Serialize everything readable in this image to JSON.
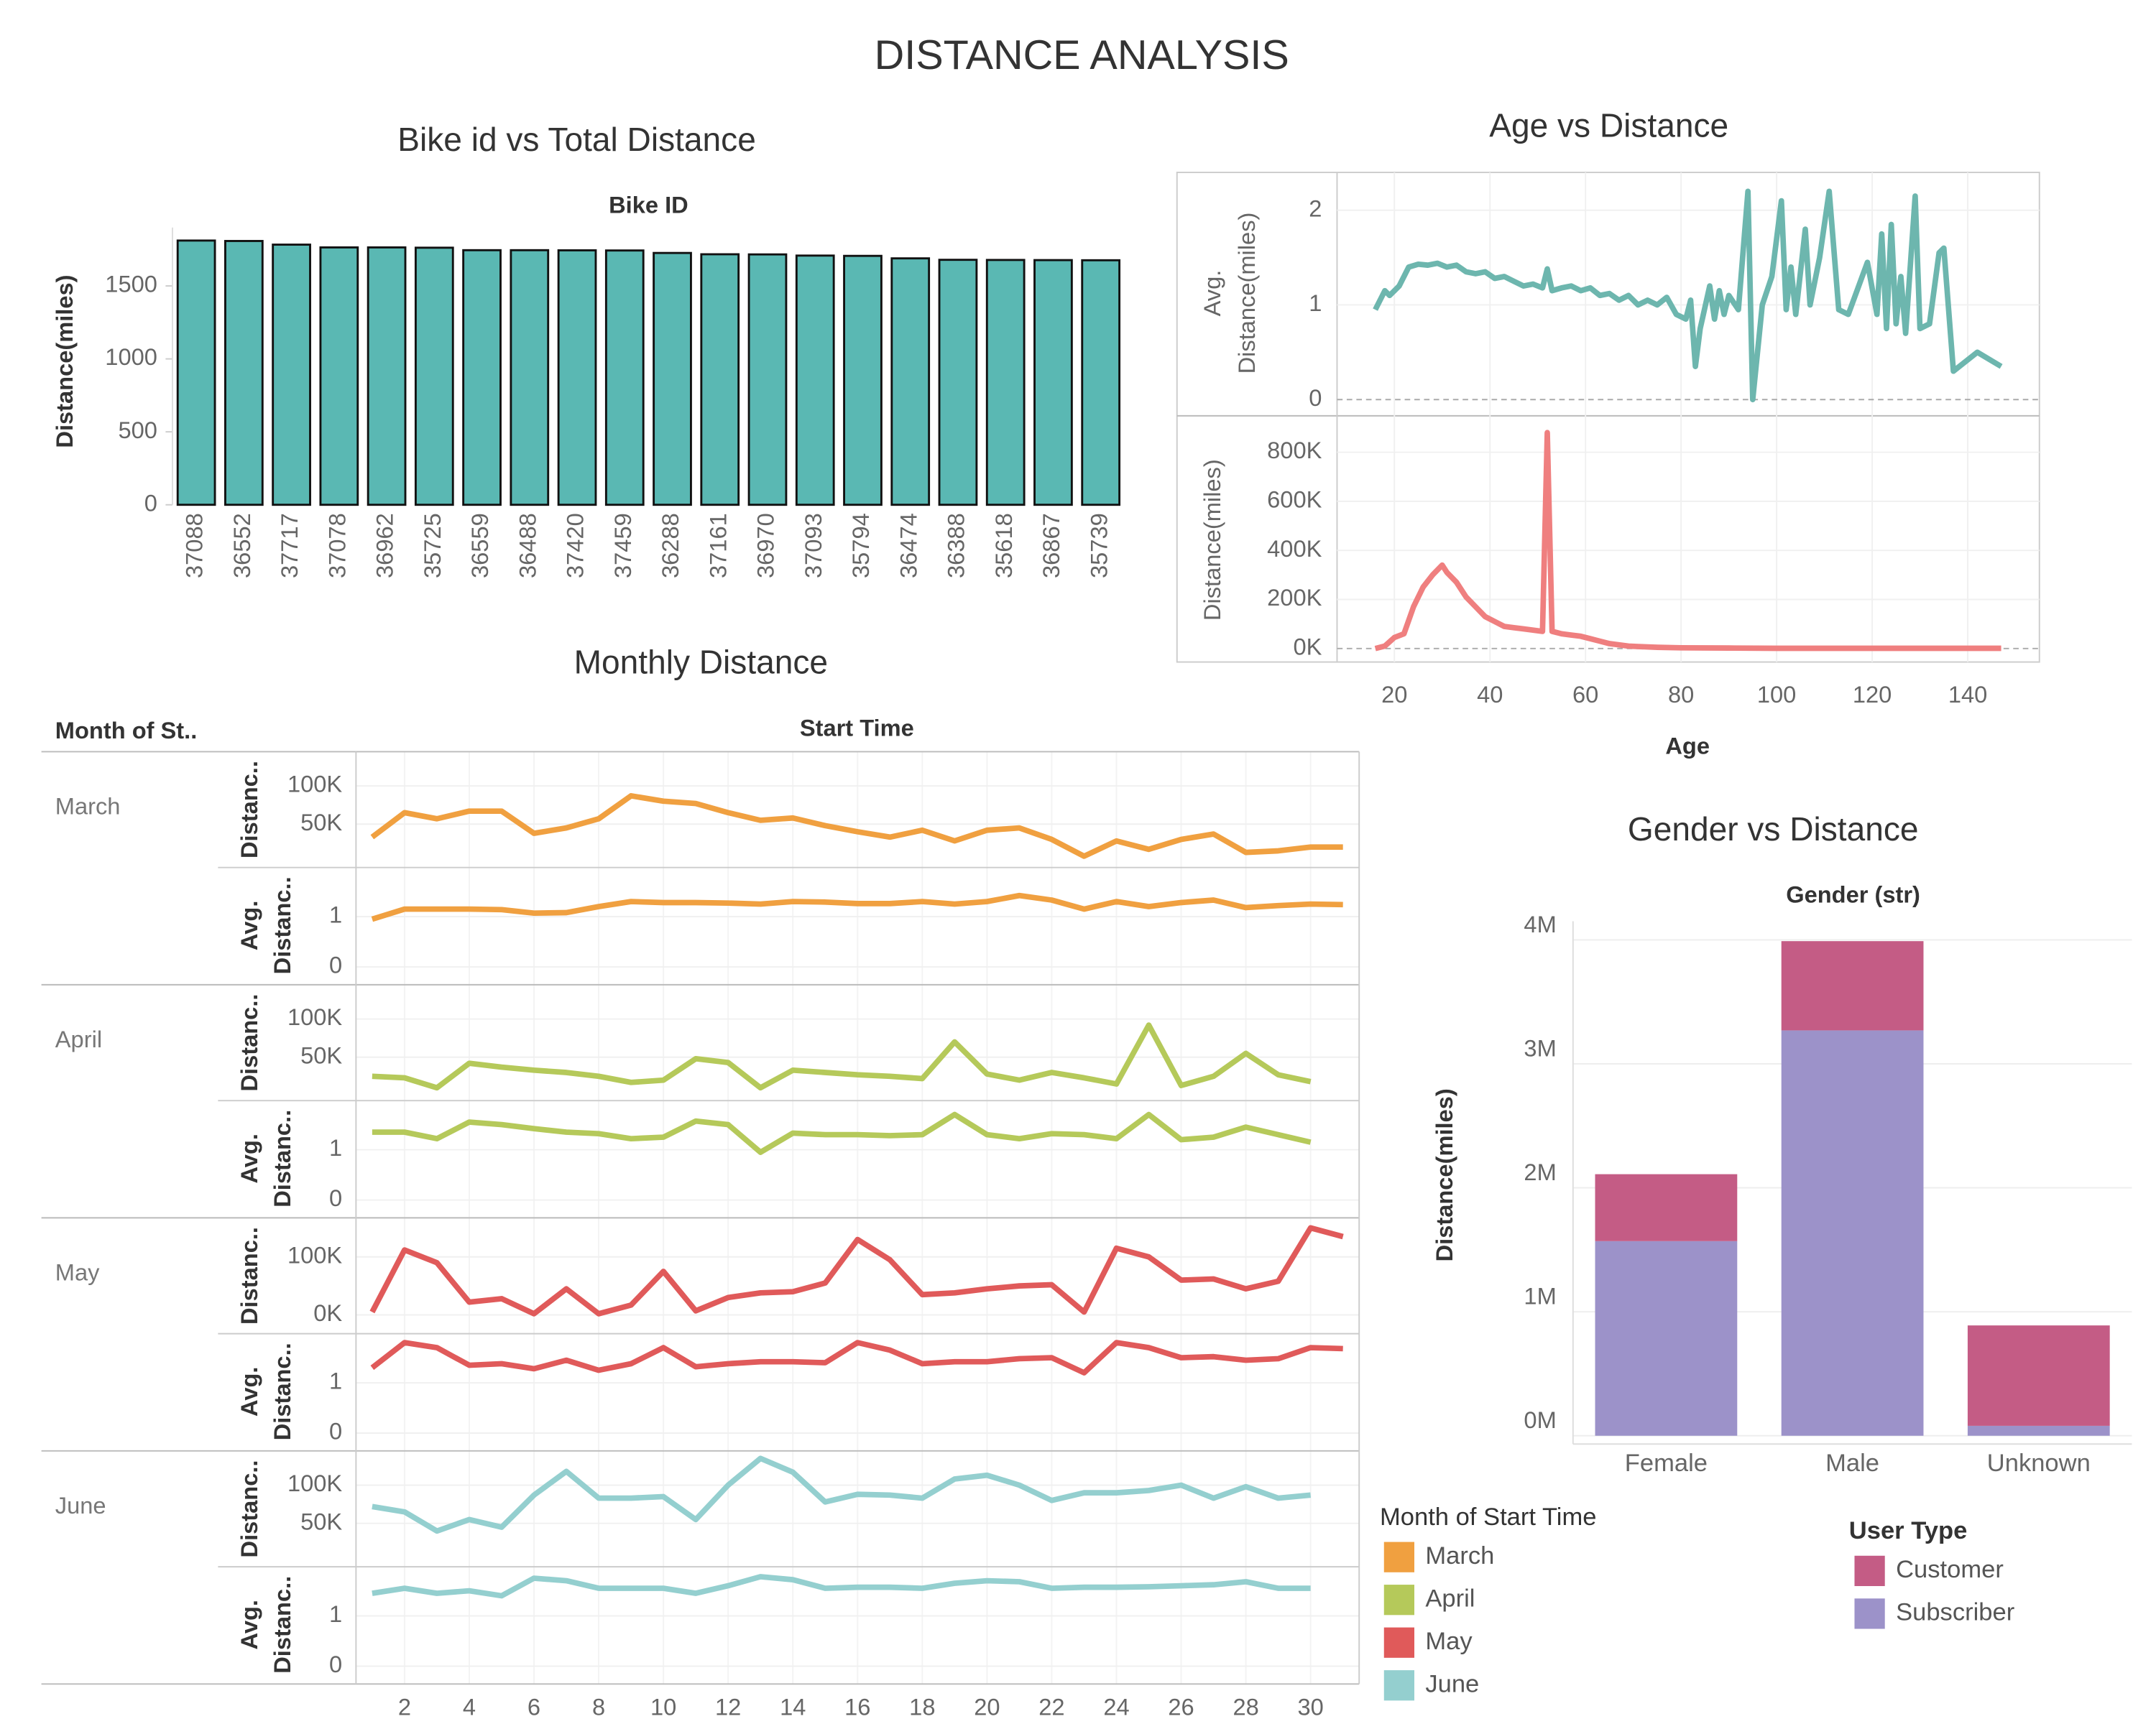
{
  "title": "DISTANCE ANALYSIS",
  "chart_data": [
    {
      "type": "bar",
      "title": "Bike id vs Total Distance",
      "x_label": "Bike ID",
      "y_label": "Distance(miles)",
      "categories": [
        "37088",
        "36552",
        "37717",
        "37078",
        "36962",
        "35725",
        "36559",
        "36488",
        "37420",
        "37459",
        "36288",
        "37161",
        "36970",
        "37093",
        "35794",
        "36474",
        "36388",
        "35618",
        "36867",
        "35739"
      ],
      "values": [
        1811,
        1808,
        1783,
        1764,
        1764,
        1762,
        1745,
        1745,
        1744,
        1743,
        1726,
        1717,
        1716,
        1708,
        1706,
        1689,
        1679,
        1678,
        1677,
        1676
      ],
      "color": "#5ab8b3",
      "ylim": [
        0,
        1900
      ],
      "yticks": [
        0,
        500,
        1000,
        1500
      ]
    },
    {
      "type": "line",
      "title": "Age vs Distance",
      "x_label": "Age",
      "xlim": [
        8,
        155
      ],
      "xticks": [
        20,
        40,
        60,
        80,
        100,
        120,
        140
      ],
      "panes": [
        {
          "y_label": [
            "Avg.",
            "Distance(miles)"
          ],
          "color": "#6db6ae",
          "ylim": [
            -0.15,
            2.4
          ],
          "yticks": [
            0,
            1,
            2
          ],
          "x": [
            16,
            18,
            19,
            21,
            23,
            25,
            27,
            29,
            31,
            33,
            35,
            37,
            39,
            41,
            43,
            45,
            47,
            49,
            51,
            52,
            53,
            55,
            57,
            59,
            61,
            63,
            65,
            67,
            69,
            71,
            73,
            75,
            77,
            79,
            81,
            82,
            83,
            84,
            86,
            87,
            88,
            89,
            90,
            92,
            94,
            95,
            97,
            99,
            101,
            102,
            103,
            104,
            106,
            107,
            109,
            111,
            113,
            115,
            119,
            121,
            122,
            123,
            124,
            125,
            126,
            127,
            129,
            130,
            132,
            134,
            135,
            137,
            142,
            147
          ],
          "values": [
            0.95,
            1.15,
            1.1,
            1.2,
            1.4,
            1.43,
            1.42,
            1.44,
            1.4,
            1.42,
            1.35,
            1.33,
            1.35,
            1.28,
            1.3,
            1.25,
            1.2,
            1.22,
            1.18,
            1.38,
            1.15,
            1.18,
            1.2,
            1.15,
            1.18,
            1.1,
            1.12,
            1.05,
            1.1,
            1.0,
            1.05,
            1.0,
            1.08,
            0.9,
            0.85,
            1.05,
            0.35,
            0.75,
            1.2,
            0.85,
            1.15,
            0.9,
            1.1,
            0.95,
            2.2,
            0,
            1.0,
            1.3,
            2.1,
            0.95,
            1.4,
            0.9,
            1.8,
            1.0,
            1.5,
            2.2,
            0.95,
            0.9,
            1.45,
            0.9,
            1.75,
            0.75,
            1.85,
            0.8,
            1.3,
            0.7,
            2.15,
            0.75,
            0.8,
            1.55,
            1.6,
            0.3,
            0.5,
            0.35
          ]
        },
        {
          "y_label": [
            "Distance(miles)"
          ],
          "color": "#ef7f7f",
          "ylim": [
            -55000,
            940000
          ],
          "yticks": [
            {
              "value": 0,
              "label": "0K"
            },
            {
              "value": 200000,
              "label": "200K"
            },
            {
              "value": 400000,
              "label": "400K"
            },
            {
              "value": 600000,
              "label": "600K"
            },
            {
              "value": 800000,
              "label": "800K"
            }
          ],
          "x": [
            16,
            18,
            20,
            22,
            24,
            26,
            28,
            30,
            31,
            33,
            35,
            37,
            39,
            41,
            43,
            45,
            47,
            49,
            51,
            52,
            53,
            55,
            57,
            59,
            61,
            63,
            65,
            67,
            69,
            71,
            75,
            80,
            90,
            100,
            120,
            147
          ],
          "values": [
            0,
            10000,
            45000,
            60000,
            170000,
            250000,
            300000,
            340000,
            310000,
            270000,
            210000,
            170000,
            130000,
            110000,
            90000,
            85000,
            80000,
            75000,
            70000,
            880000,
            70000,
            60000,
            55000,
            50000,
            40000,
            30000,
            20000,
            15000,
            10000,
            8000,
            5000,
            3000,
            2000,
            1000,
            1000,
            1000
          ]
        }
      ]
    },
    {
      "type": "small_multiples",
      "title": "Monthly Distance",
      "row_header": "Month of St..",
      "x_label": "Start Time",
      "xlim": [
        0.5,
        31.5
      ],
      "xticks": [
        2,
        4,
        6,
        8,
        10,
        12,
        14,
        16,
        18,
        20,
        22,
        24,
        26,
        28,
        30
      ],
      "legend_title": "Month of Start Time",
      "rows": [
        {
          "name": "March",
          "color": "#f0a040",
          "x": [
            1,
            2,
            3,
            4,
            5,
            6,
            7,
            8,
            9,
            10,
            11,
            12,
            13,
            14,
            15,
            16,
            17,
            18,
            19,
            20,
            21,
            22,
            23,
            24,
            25,
            26,
            27,
            28,
            29,
            30,
            31
          ],
          "panes": [
            {
              "y_label": [
                "Distanc.."
              ],
              "ylim": [
                -5000,
                143000
              ],
              "yticks": [
                {
                  "value": 50000,
                  "label": "50K"
                },
                {
                  "value": 100000,
                  "label": "100K"
                }
              ],
              "values": [
                33000,
                65000,
                57000,
                67000,
                67000,
                38000,
                45000,
                57000,
                87000,
                80000,
                77000,
                65000,
                55000,
                58000,
                48000,
                40000,
                33000,
                42000,
                28000,
                42000,
                45000,
                30000,
                8000,
                28000,
                17000,
                30000,
                37000,
                13000,
                15000,
                20000,
                20000
              ]
            },
            {
              "y_label": [
                "Avg.",
                "Distanc.."
              ],
              "ylim": [
                -0.3,
                1.95
              ],
              "yticks": [
                0,
                1
              ],
              "values": [
                0.95,
                1.15,
                1.15,
                1.15,
                1.14,
                1.07,
                1.08,
                1.2,
                1.3,
                1.28,
                1.28,
                1.27,
                1.25,
                1.3,
                1.29,
                1.26,
                1.26,
                1.3,
                1.25,
                1.3,
                1.42,
                1.33,
                1.15,
                1.3,
                1.2,
                1.28,
                1.33,
                1.18,
                1.22,
                1.25,
                1.24
              ]
            }
          ]
        },
        {
          "name": "April",
          "color": "#b5c95a",
          "x": [
            1,
            2,
            3,
            4,
            5,
            6,
            7,
            8,
            9,
            10,
            11,
            12,
            13,
            14,
            15,
            16,
            17,
            18,
            19,
            20,
            21,
            22,
            23,
            24,
            25,
            26,
            27,
            28,
            29,
            30
          ],
          "panes": [
            {
              "y_label": [
                "Distanc.."
              ],
              "ylim": [
                -5000,
                143000
              ],
              "yticks": [
                {
                  "value": 50000,
                  "label": "50K"
                },
                {
                  "value": 100000,
                  "label": "100K"
                }
              ],
              "values": [
                25000,
                23000,
                10000,
                42000,
                37000,
                33000,
                30000,
                25000,
                17000,
                20000,
                48000,
                43000,
                10000,
                33000,
                30000,
                27000,
                25000,
                22000,
                70000,
                28000,
                20000,
                30000,
                23000,
                15000,
                92000,
                13000,
                25000,
                55000,
                27000,
                18000
              ]
            },
            {
              "y_label": [
                "Avg.",
                "Distanc.."
              ],
              "ylim": [
                -0.3,
                1.95
              ],
              "yticks": [
                0,
                1
              ],
              "values": [
                1.35,
                1.35,
                1.22,
                1.55,
                1.5,
                1.42,
                1.35,
                1.32,
                1.22,
                1.25,
                1.57,
                1.5,
                0.95,
                1.33,
                1.3,
                1.3,
                1.28,
                1.3,
                1.7,
                1.3,
                1.22,
                1.32,
                1.3,
                1.22,
                1.7,
                1.2,
                1.25,
                1.45,
                1.3,
                1.15
              ]
            }
          ]
        },
        {
          "name": "May",
          "color": "#e05a5a",
          "x": [
            1,
            2,
            3,
            4,
            5,
            6,
            7,
            8,
            9,
            10,
            11,
            12,
            13,
            14,
            15,
            16,
            17,
            18,
            19,
            20,
            21,
            22,
            23,
            24,
            25,
            26,
            27,
            28,
            29,
            30,
            31
          ],
          "panes": [
            {
              "y_label": [
                "Distanc.."
              ],
              "ylim": [
                -30000,
                165000
              ],
              "yticks": [
                {
                  "value": 0,
                  "label": "0K"
                },
                {
                  "value": 100000,
                  "label": "100K"
                }
              ],
              "values": [
                5000,
                112000,
                90000,
                22000,
                28000,
                2000,
                45000,
                2000,
                17000,
                75000,
                7000,
                30000,
                38000,
                40000,
                55000,
                130000,
                95000,
                35000,
                38000,
                45000,
                50000,
                52000,
                5000,
                115000,
                100000,
                60000,
                62000,
                45000,
                58000,
                150000,
                135000
              ]
            },
            {
              "y_label": [
                "Avg.",
                "Distanc.."
              ],
              "ylim": [
                -0.3,
                1.95
              ],
              "yticks": [
                0,
                1
              ],
              "values": [
                1.3,
                1.8,
                1.7,
                1.35,
                1.38,
                1.28,
                1.45,
                1.25,
                1.38,
                1.7,
                1.32,
                1.38,
                1.42,
                1.42,
                1.4,
                1.8,
                1.65,
                1.38,
                1.42,
                1.42,
                1.48,
                1.5,
                1.2,
                1.8,
                1.7,
                1.5,
                1.52,
                1.45,
                1.48,
                1.7,
                1.68
              ]
            }
          ]
        },
        {
          "name": "June",
          "color": "#94cfcf",
          "x": [
            1,
            2,
            3,
            4,
            5,
            6,
            7,
            8,
            9,
            10,
            11,
            12,
            13,
            14,
            15,
            16,
            17,
            18,
            19,
            20,
            21,
            22,
            23,
            24,
            25,
            26,
            27,
            28,
            29,
            30
          ],
          "panes": [
            {
              "y_label": [
                "Distanc.."
              ],
              "ylim": [
                -5000,
                143000
              ],
              "yticks": [
                {
                  "value": 50000,
                  "label": "50K"
                },
                {
                  "value": 100000,
                  "label": "100K"
                }
              ],
              "values": [
                72000,
                65000,
                40000,
                55000,
                45000,
                87000,
                118000,
                83000,
                83000,
                85000,
                55000,
                100000,
                135000,
                117000,
                78000,
                88000,
                87000,
                83000,
                108000,
                113000,
                100000,
                80000,
                90000,
                90000,
                93000,
                100000,
                83000,
                98000,
                83000,
                87000
              ]
            },
            {
              "y_label": [
                "Avg.",
                "Distanc.."
              ],
              "ylim": [
                -0.3,
                1.95
              ],
              "yticks": [
                0,
                1
              ],
              "values": [
                1.45,
                1.55,
                1.45,
                1.5,
                1.4,
                1.75,
                1.7,
                1.55,
                1.55,
                1.55,
                1.45,
                1.6,
                1.78,
                1.72,
                1.55,
                1.57,
                1.57,
                1.55,
                1.65,
                1.7,
                1.68,
                1.55,
                1.57,
                1.57,
                1.58,
                1.6,
                1.62,
                1.68,
                1.55,
                1.55
              ]
            }
          ]
        }
      ]
    },
    {
      "type": "stacked_bar",
      "title": "Gender vs Distance",
      "x_label": "Gender (str)",
      "y_label": "Distance(miles)",
      "categories": [
        "Female",
        "Male",
        "Unknown"
      ],
      "legend_title": "User Type",
      "series": [
        {
          "name": "Customer",
          "color": "#c45c85",
          "values": [
            540000,
            720000,
            810000
          ]
        },
        {
          "name": "Subscriber",
          "color": "#9c92c9",
          "values": [
            1570000,
            3270000,
            80000
          ]
        }
      ],
      "ylim": [
        0,
        4150000
      ],
      "yticks": [
        {
          "value": 0,
          "label": "0M"
        },
        {
          "value": 1000000,
          "label": "1M"
        },
        {
          "value": 2000000,
          "label": "2M"
        },
        {
          "value": 3000000,
          "label": "3M"
        },
        {
          "value": 4000000,
          "label": "4M"
        }
      ]
    }
  ]
}
